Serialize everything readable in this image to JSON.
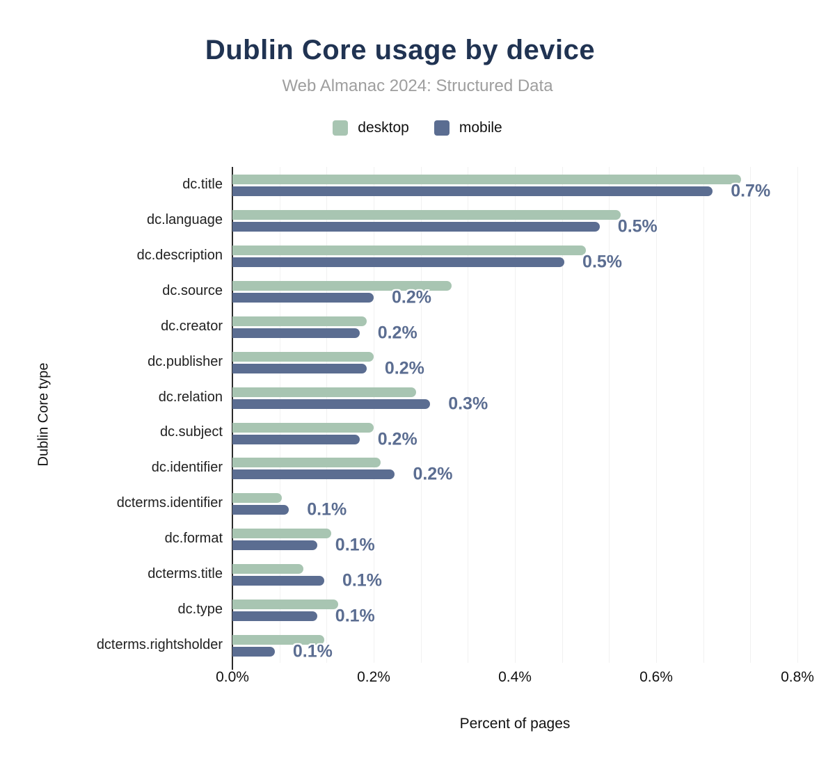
{
  "header": {
    "title": "Dublin Core usage by device",
    "subtitle": "Web Almanac 2024: Structured Data"
  },
  "legend": {
    "items": [
      {
        "label": "desktop",
        "color": "#a8c5b2"
      },
      {
        "label": "mobile",
        "color": "#5b6d91"
      }
    ]
  },
  "colors": {
    "title": "#203352",
    "subtitle": "#9e9e9e",
    "axis_line": "#2a2a2a",
    "grid_line": "#f1f1f1",
    "value_label": "#5b6d91"
  },
  "chart_data": {
    "type": "bar",
    "orientation": "horizontal",
    "title": "Dublin Core usage by device",
    "subtitle": "Web Almanac 2024: Structured Data",
    "xlabel": "Percent of pages",
    "ylabel": "Dublin Core type",
    "xlim": [
      0,
      0.8
    ],
    "x_tick_labels": [
      "0.0%",
      "0.2%",
      "0.4%",
      "0.6%",
      "0.8%"
    ],
    "unit": "percent",
    "grid": "vertical minor gridlines every 0.0667%",
    "legend_position": "top",
    "categories": [
      "dc.title",
      "dc.language",
      "dc.description",
      "dc.source",
      "dc.creator",
      "dc.publisher",
      "dc.relation",
      "dc.subject",
      "dc.identifier",
      "dcterms.identifier",
      "dc.format",
      "dcterms.title",
      "dc.type",
      "dcterms.rightsholder"
    ],
    "series": [
      {
        "name": "desktop",
        "color": "#a8c5b2",
        "values": [
          0.72,
          0.55,
          0.5,
          0.31,
          0.19,
          0.2,
          0.26,
          0.2,
          0.21,
          0.07,
          0.14,
          0.1,
          0.15,
          0.13
        ]
      },
      {
        "name": "mobile",
        "color": "#5b6d91",
        "values": [
          0.68,
          0.52,
          0.47,
          0.2,
          0.18,
          0.19,
          0.28,
          0.18,
          0.23,
          0.08,
          0.12,
          0.13,
          0.12,
          0.06
        ]
      }
    ],
    "bar_labels": [
      "0.7%",
      "0.5%",
      "0.5%",
      "0.2%",
      "0.2%",
      "0.2%",
      "0.3%",
      "0.2%",
      "0.2%",
      "0.1%",
      "0.1%",
      "0.1%",
      "0.1%",
      "0.1%"
    ],
    "bar_labels_anchor": "mobile"
  }
}
